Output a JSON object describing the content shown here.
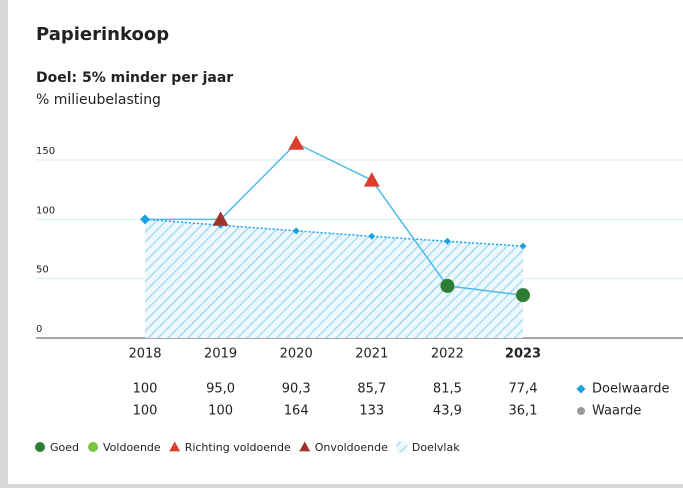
{
  "chart_data": {
    "type": "line",
    "title": "Papierinkoop",
    "subtitle": "Doel: 5% minder per jaar",
    "y_label": "% milieubelasting",
    "categories": [
      "2018",
      "2019",
      "2020",
      "2021",
      "2022",
      "2023"
    ],
    "highlight_index": 5,
    "ylim": [
      0,
      150
    ],
    "yticks": [
      0,
      50,
      100,
      150
    ],
    "grid": true,
    "series": [
      {
        "name": "Doelwaarde",
        "color": "#1ba1e2",
        "values": [
          100,
          95.0,
          90.3,
          85.7,
          81.5,
          77.4
        ],
        "value_labels": [
          "100",
          "95,0",
          "90,3",
          "85,7",
          "81,5",
          "77,4"
        ]
      },
      {
        "name": "Waarde",
        "color": "#999999",
        "values": [
          100,
          100,
          164,
          133,
          43.9,
          36.1
        ],
        "value_labels": [
          "100",
          "100",
          "164",
          "133",
          "43,9",
          "36,1"
        ],
        "markers": [
          null,
          3,
          2,
          2,
          0,
          0
        ]
      }
    ],
    "status_legend": [
      {
        "name": "Goed",
        "color": "#2e7d32",
        "shape": "circle"
      },
      {
        "name": "Voldoende",
        "color": "#7cc242",
        "shape": "circle"
      },
      {
        "name": "Richting voldoende",
        "color": "#d9402f",
        "shape": "triangle"
      },
      {
        "name": "Onvoldoende",
        "color": "#a0332b",
        "shape": "triangle"
      },
      {
        "name": "Doelvlak",
        "color": "#a9dcf2",
        "shape": "hatch"
      }
    ]
  }
}
